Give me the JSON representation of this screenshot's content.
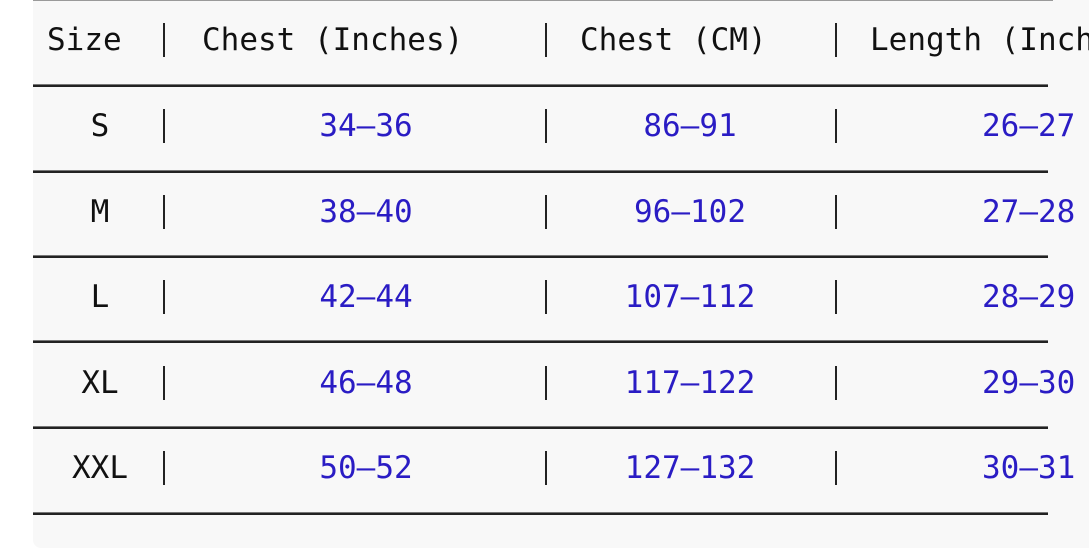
{
  "table": {
    "headers": [
      "Size",
      "Chest (Inches)",
      "Chest (CM)",
      "Length (Inches)"
    ],
    "rows": [
      {
        "size": "S",
        "chest_in": "34–36",
        "chest_cm": "86–91",
        "length_in": "26–27"
      },
      {
        "size": "M",
        "chest_in": "38–40",
        "chest_cm": "96–102",
        "length_in": "27–28"
      },
      {
        "size": "L",
        "chest_in": "42–44",
        "chest_cm": "107–112",
        "length_in": "28–29"
      },
      {
        "size": "XL",
        "chest_in": "46–48",
        "chest_cm": "117–122",
        "length_in": "29–30"
      },
      {
        "size": "XXL",
        "chest_in": "50–52",
        "chest_cm": "127–132",
        "length_in": "30–31"
      }
    ]
  },
  "colors": {
    "value_text": "#2a1cc4",
    "background": "#f8f8f8"
  }
}
